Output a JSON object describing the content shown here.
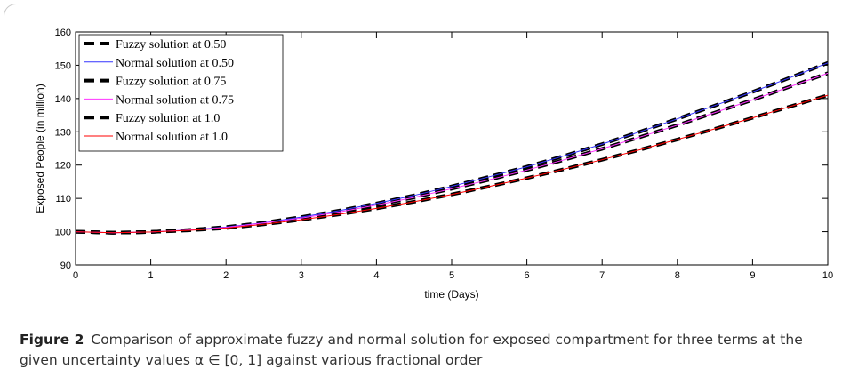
{
  "chart_data": {
    "type": "line",
    "title": "",
    "xlabel": "time  (Days)",
    "ylabel": "Exposed People (in million)",
    "xlim": [
      0,
      10
    ],
    "ylim": [
      90,
      160
    ],
    "xticks": [
      0,
      1,
      2,
      3,
      4,
      5,
      6,
      7,
      8,
      9,
      10
    ],
    "yticks": [
      90,
      100,
      110,
      120,
      130,
      140,
      150,
      160
    ],
    "grid": false,
    "legend_position": "top-left",
    "x": [
      0,
      0.5,
      1,
      1.5,
      2,
      2.5,
      3,
      3.5,
      4,
      4.5,
      5,
      5.5,
      6,
      6.5,
      7,
      7.5,
      8,
      8.5,
      9,
      9.5,
      10
    ],
    "series": [
      {
        "name": "Fuzzy solution at 0.50",
        "style": "dashed",
        "color": "#000000",
        "values": [
          100.0,
          99.7,
          99.9,
          100.5,
          101.4,
          102.7,
          104.4,
          106.3,
          108.5,
          110.9,
          113.6,
          116.5,
          119.5,
          122.8,
          126.3,
          130.0,
          133.9,
          137.9,
          142.0,
          146.3,
          150.7
        ]
      },
      {
        "name": "Normal solution at 0.50",
        "style": "solid",
        "color": "#3333ff",
        "values": [
          100.0,
          99.7,
          99.9,
          100.5,
          101.4,
          102.7,
          104.4,
          106.3,
          108.5,
          110.9,
          113.6,
          116.5,
          119.5,
          122.8,
          126.3,
          130.0,
          133.9,
          137.9,
          142.0,
          146.3,
          150.7
        ]
      },
      {
        "name": "Fuzzy solution at 0.75",
        "style": "dashed",
        "color": "#000000",
        "values": [
          100.0,
          99.7,
          99.9,
          100.5,
          101.3,
          102.6,
          104.1,
          105.9,
          108.0,
          110.3,
          112.9,
          115.6,
          118.5,
          121.6,
          124.9,
          128.4,
          132.0,
          135.8,
          139.6,
          143.6,
          147.6
        ]
      },
      {
        "name": "Normal solution at 0.75",
        "style": "solid",
        "color": "#ff33ff",
        "values": [
          100.0,
          99.7,
          99.9,
          100.5,
          101.3,
          102.6,
          104.1,
          105.9,
          108.0,
          110.3,
          112.9,
          115.6,
          118.5,
          121.6,
          124.9,
          128.4,
          132.0,
          135.8,
          139.6,
          143.6,
          147.6
        ]
      },
      {
        "name": "Fuzzy solution at 1.0",
        "style": "dashed",
        "color": "#000000",
        "values": [
          100.0,
          99.7,
          99.9,
          100.4,
          101.1,
          102.2,
          103.6,
          105.2,
          107.0,
          109.0,
          111.2,
          113.6,
          116.1,
          118.8,
          121.6,
          124.6,
          127.7,
          130.9,
          134.2,
          137.6,
          141.0
        ]
      },
      {
        "name": "Normal solution at 1.0",
        "style": "solid",
        "color": "#ff0000",
        "values": [
          100.0,
          99.7,
          99.9,
          100.4,
          101.1,
          102.2,
          103.6,
          105.2,
          107.0,
          109.0,
          111.2,
          113.6,
          116.1,
          118.8,
          121.6,
          124.6,
          127.7,
          130.9,
          134.2,
          137.6,
          141.0
        ]
      }
    ]
  },
  "caption": {
    "label": "Figure 2",
    "text": "Comparison of approximate fuzzy and normal solution for exposed compartment for three terms at the given uncertainty values α ∈ [0, 1] against various fractional order"
  }
}
